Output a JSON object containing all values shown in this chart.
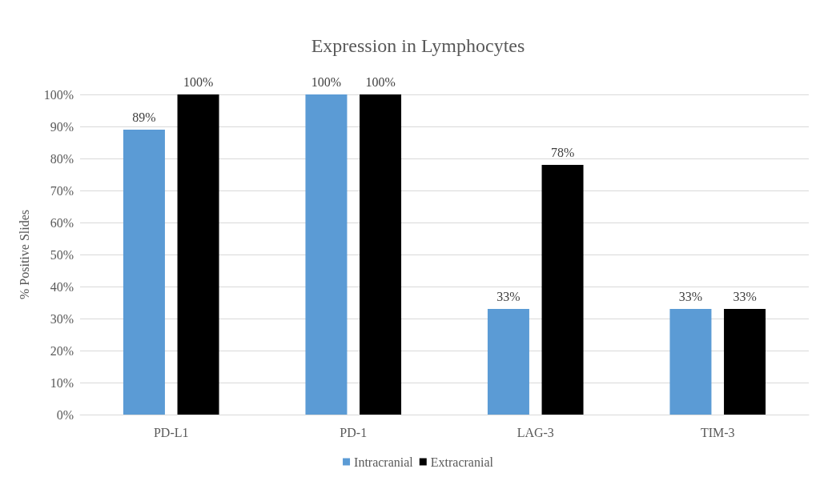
{
  "chart_data": {
    "type": "bar",
    "title": "Expression in Lymphocytes",
    "ylabel": "% Positive Slides",
    "categories": [
      "PD-L1",
      "PD-1",
      "LAG-3",
      "TIM-3"
    ],
    "series": [
      {
        "name": "Intracranial",
        "color": "#5b9bd5",
        "values": [
          89,
          100,
          33,
          33
        ],
        "value_labels": [
          "89%",
          "100%",
          "33%",
          "33%"
        ]
      },
      {
        "name": "Extracranial",
        "color": "#000000",
        "values": [
          100,
          100,
          78,
          33
        ],
        "value_labels": [
          "100%",
          "100%",
          "78%",
          "33%"
        ]
      }
    ],
    "ylim": [
      0,
      100
    ],
    "yticks": [
      {
        "value": 0,
        "label": "0%"
      },
      {
        "value": 10,
        "label": "10%"
      },
      {
        "value": 20,
        "label": "20%"
      },
      {
        "value": 30,
        "label": "30%"
      },
      {
        "value": 40,
        "label": "40%"
      },
      {
        "value": 50,
        "label": "50%"
      },
      {
        "value": 60,
        "label": "60%"
      },
      {
        "value": 70,
        "label": "70%"
      },
      {
        "value": 80,
        "label": "80%"
      },
      {
        "value": 90,
        "label": "90%"
      },
      {
        "value": 100,
        "label": "100%"
      }
    ],
    "grid": "y",
    "legend": "bottom"
  }
}
